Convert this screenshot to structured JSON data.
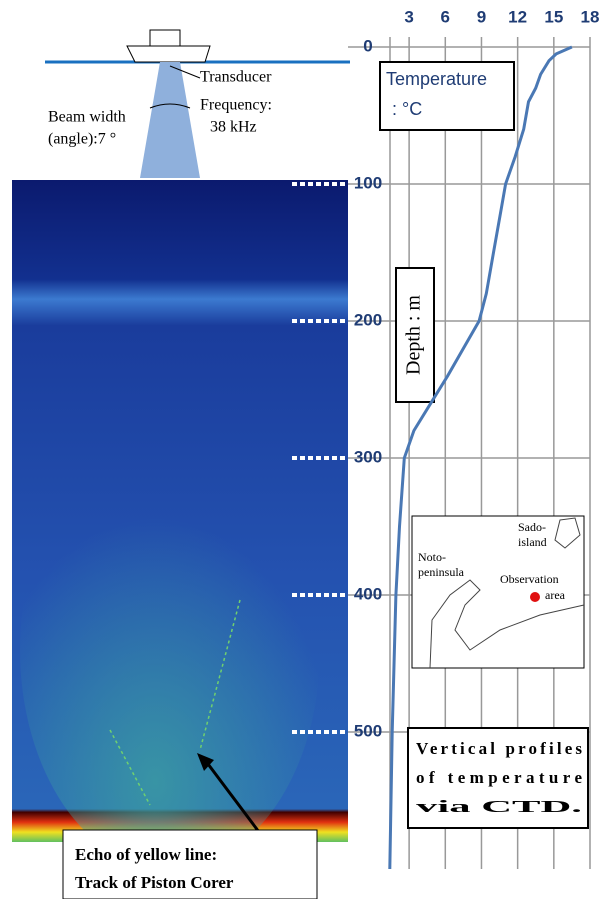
{
  "chart_data": {
    "type": "line",
    "x_label": "Temperature",
    "x_unit": ": °C",
    "y_label": "Depth : m",
    "xlim": [
      1,
      18
    ],
    "xticks": [
      3,
      6,
      9,
      12,
      15,
      18
    ],
    "ylim": [
      0,
      600
    ],
    "yticks": [
      0,
      100,
      200,
      300,
      400,
      500
    ],
    "grid": true,
    "series": [
      {
        "name": "Temperature",
        "color": "#4a78b4",
        "x": [
          16.5,
          15.2,
          14.6,
          13.9,
          13.5,
          12.9,
          12.5,
          11.8,
          11.0,
          10.6,
          10.0,
          9.4,
          8.8,
          7.5,
          6.2,
          4.8,
          3.4,
          2.6,
          2.2,
          1.9,
          1.6,
          1.4
        ],
        "values": [
          0,
          5,
          10,
          20,
          30,
          40,
          60,
          80,
          100,
          120,
          150,
          180,
          200,
          220,
          240,
          260,
          280,
          300,
          350,
          400,
          500,
          600
        ]
      }
    ],
    "annotations": {
      "transducer": "Transducer",
      "frequency": "Frequency:",
      "frequency_value": "38 kHz",
      "beam": "Beam width",
      "beam_angle": "(angle):7 °",
      "echo_1": "Echo of yellow line:",
      "echo_2": "Track of Piston Corer",
      "caption": [
        "Vertical profiles",
        "of temperature",
        "via CTD."
      ],
      "map": [
        "Sado-",
        "island",
        "Noto-",
        "peninsula",
        "Observation",
        "area"
      ]
    }
  }
}
